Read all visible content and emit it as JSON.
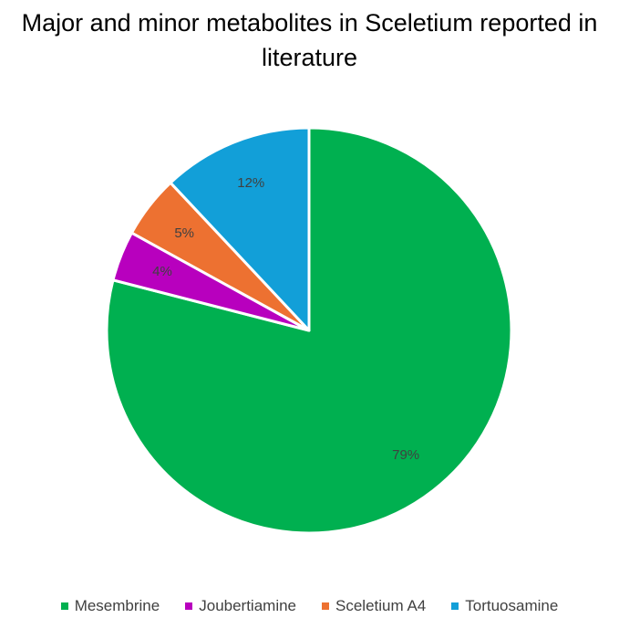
{
  "chart_data": {
    "type": "pie",
    "title": "Major and minor metabolites in Sceletium reported in literature",
    "start_angle_deg": 0,
    "direction": "clockwise",
    "legend_position": "bottom",
    "slices": [
      {
        "name": "Mesembrine",
        "value": 79,
        "label": "79%",
        "color": "#00B050"
      },
      {
        "name": "Joubertiamine",
        "value": 4,
        "label": "4%",
        "color": "#B800BE"
      },
      {
        "name": "Sceletium A4",
        "value": 5,
        "label": "5%",
        "color": "#ED7131"
      },
      {
        "name": "Tortuosamine",
        "value": 12,
        "label": "12%",
        "color": "#129FD8"
      }
    ]
  }
}
